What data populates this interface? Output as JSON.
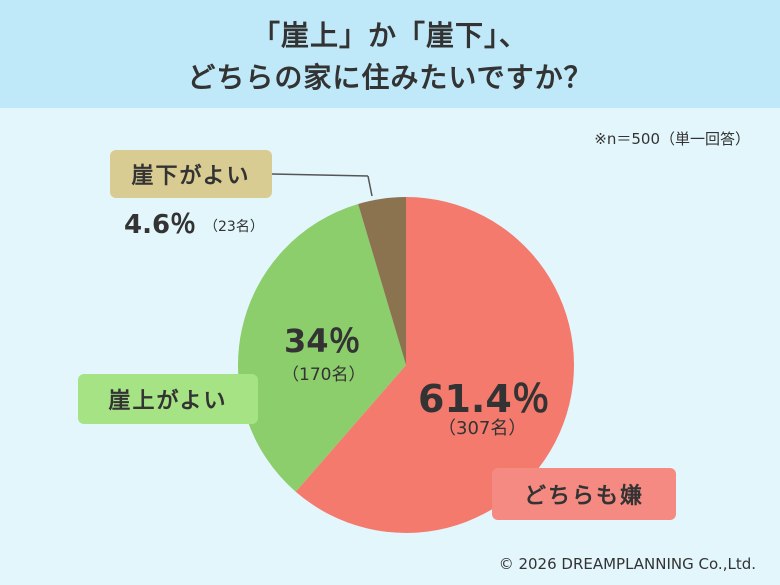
{
  "header": {
    "title_line1": "「崖上」か「崖下」、",
    "title_line2": "どちらの家に住みたいですか？"
  },
  "note": "※n＝500（単一回答）",
  "chart_data": {
    "type": "pie",
    "title": "「崖上」か「崖下」、どちらの家に住みたいですか？",
    "n": 500,
    "slices": [
      {
        "label": "どちらも嫌",
        "percent": 61.4,
        "percent_label": "61.4％",
        "count_label": "（307名）",
        "color": "#f47a6e"
      },
      {
        "label": "崖上がよい",
        "percent": 34,
        "percent_label": "34％",
        "count_label": "（170名）",
        "color": "#8ccd6c"
      },
      {
        "label": "崖下がよい",
        "percent": 4.6,
        "percent_label": "4.6％",
        "count_label": "（23名）",
        "color": "#8b7350"
      }
    ]
  },
  "footer": "© 2026 DREAMPLANNING Co.,Ltd."
}
